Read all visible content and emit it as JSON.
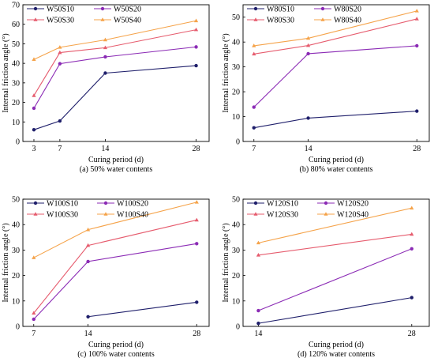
{
  "chart_data": [
    {
      "type": "line",
      "caption": "(a) 50% water contents",
      "xlabel": "Curing period (d)",
      "ylabel": "Internal friction angle (°)",
      "xlim": [
        1.3,
        30
      ],
      "ylim": [
        0,
        70
      ],
      "xticks": [
        3,
        7,
        14,
        28
      ],
      "yticks": [
        0,
        10,
        20,
        30,
        40,
        50,
        60,
        70
      ],
      "legend_position": "top-left",
      "series": [
        {
          "name": "W50S10",
          "color": "#1f1f6b",
          "marker": "circle",
          "x": [
            3,
            7,
            14,
            28
          ],
          "values": [
            6.0,
            10.5,
            35.0,
            38.8
          ]
        },
        {
          "name": "W50S20",
          "color": "#8b2bb5",
          "marker": "circle",
          "x": [
            3,
            7,
            14,
            28
          ],
          "values": [
            17.0,
            39.8,
            43.3,
            48.4
          ]
        },
        {
          "name": "W50S30",
          "color": "#e65c6e",
          "marker": "triangle",
          "x": [
            3,
            7,
            14,
            28
          ],
          "values": [
            23.5,
            45.5,
            48.0,
            57.2
          ]
        },
        {
          "name": "W50S40",
          "color": "#f5a34a",
          "marker": "triangle",
          "x": [
            3,
            7,
            14,
            28
          ],
          "values": [
            42.0,
            48.2,
            52.0,
            61.8
          ]
        }
      ]
    },
    {
      "type": "line",
      "caption": "(b) 80% water contents",
      "xlabel": "Curing period (d)",
      "ylabel": "Internal friction angle (°)",
      "xlim": [
        5.6,
        29.6
      ],
      "ylim": [
        0,
        55
      ],
      "xticks": [
        7,
        14,
        28
      ],
      "yticks": [
        0,
        10,
        20,
        30,
        40,
        50
      ],
      "legend_position": "top-left",
      "series": [
        {
          "name": "W80S10",
          "color": "#1f1f6b",
          "marker": "circle",
          "x": [
            7,
            14,
            28
          ],
          "values": [
            5.5,
            9.4,
            12.2
          ]
        },
        {
          "name": "W80S20",
          "color": "#8b2bb5",
          "marker": "circle",
          "x": [
            7,
            14,
            28
          ],
          "values": [
            13.8,
            35.3,
            38.5
          ]
        },
        {
          "name": "W80S30",
          "color": "#e65c6e",
          "marker": "triangle",
          "x": [
            7,
            14,
            28
          ],
          "values": [
            35.2,
            38.6,
            49.3
          ]
        },
        {
          "name": "W80S40",
          "color": "#f5a34a",
          "marker": "triangle",
          "x": [
            7,
            14,
            28
          ],
          "values": [
            38.5,
            41.5,
            52.5
          ]
        }
      ]
    },
    {
      "type": "line",
      "caption": "(c) 100% water contents",
      "xlabel": "Curing period (d)",
      "ylabel": "Internal friction angle (°)",
      "xlim": [
        5.6,
        29.6
      ],
      "ylim": [
        0,
        50
      ],
      "xticks": [
        7,
        14,
        28
      ],
      "yticks": [
        0,
        10,
        20,
        30,
        40,
        50
      ],
      "legend_position": "top-left",
      "series": [
        {
          "name": "W100S10",
          "color": "#1f1f6b",
          "marker": "circle",
          "x": [
            14,
            28
          ],
          "values": [
            3.8,
            9.5
          ]
        },
        {
          "name": "W100S20",
          "color": "#8b2bb5",
          "marker": "circle",
          "x": [
            7,
            14,
            28
          ],
          "values": [
            2.8,
            25.5,
            32.5
          ]
        },
        {
          "name": "W100S30",
          "color": "#e65c6e",
          "marker": "triangle",
          "x": [
            7,
            14,
            28
          ],
          "values": [
            5.2,
            31.8,
            41.8
          ]
        },
        {
          "name": "W100S40",
          "color": "#f5a34a",
          "marker": "triangle",
          "x": [
            7,
            14,
            28
          ],
          "values": [
            27.0,
            38.0,
            48.8
          ]
        }
      ]
    },
    {
      "type": "line",
      "caption": "(d) 120% water contents",
      "xlabel": "Curing period (d)",
      "ylabel": "Internal friction angle (°)",
      "xlim": [
        12.6,
        29.6
      ],
      "ylim": [
        0,
        50
      ],
      "xticks": [
        14,
        28
      ],
      "yticks": [
        0,
        10,
        20,
        30,
        40,
        50
      ],
      "legend_position": "top-left",
      "series": [
        {
          "name": "W120S10",
          "color": "#1f1f6b",
          "marker": "circle",
          "x": [
            14,
            28
          ],
          "values": [
            1.2,
            11.3
          ]
        },
        {
          "name": "W120S20",
          "color": "#8b2bb5",
          "marker": "circle",
          "x": [
            14,
            28
          ],
          "values": [
            6.2,
            30.5
          ]
        },
        {
          "name": "W120S30",
          "color": "#e65c6e",
          "marker": "triangle",
          "x": [
            14,
            28
          ],
          "values": [
            28.0,
            36.2
          ]
        },
        {
          "name": "W120S40",
          "color": "#f5a34a",
          "marker": "triangle",
          "x": [
            14,
            28
          ],
          "values": [
            32.8,
            46.5
          ]
        }
      ]
    }
  ]
}
